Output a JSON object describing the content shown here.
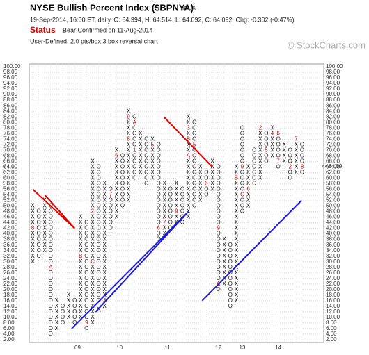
{
  "chart_data": {
    "type": "point-figure",
    "title": "NYSE Bullish Percent Index ($BPNYA)",
    "symbol": "INDX",
    "info": "19-Sep-2014, 16:00 ET, daily, O: 64.394, H: 64.514, L: 64.092, C: 64.092, Chg: -0.302 (-0.47%)",
    "status_label": "Status",
    "status_text": "Bear Confirmed on 11-Aug-2014",
    "settings": "User-Defined, 2.0 pts/box 3 box reversal chart",
    "watermark": "© StockCharts.com",
    "box_size": 2,
    "ylim": [
      2,
      100
    ],
    "grid": true,
    "yticks": [
      {
        "value": 100,
        "label": "100.00"
      },
      {
        "value": 98,
        "label": "98.00"
      },
      {
        "value": 96,
        "label": "96.00"
      },
      {
        "value": 94,
        "label": "94.00"
      },
      {
        "value": 92,
        "label": "92.00"
      },
      {
        "value": 90,
        "label": "90.00"
      },
      {
        "value": 88,
        "label": "88.00"
      },
      {
        "value": 86,
        "label": "86.00"
      },
      {
        "value": 84,
        "label": "84.00"
      },
      {
        "value": 82,
        "label": "82.00"
      },
      {
        "value": 80,
        "label": "80.00"
      },
      {
        "value": 78,
        "label": "78.00"
      },
      {
        "value": 76,
        "label": "76.00"
      },
      {
        "value": 74,
        "label": "74.00"
      },
      {
        "value": 72,
        "label": "72.00"
      },
      {
        "value": 70,
        "label": "70.00"
      },
      {
        "value": 68,
        "label": "68.00"
      },
      {
        "value": 66,
        "label": "66.00"
      },
      {
        "value": 64,
        "label": "64.00"
      },
      {
        "value": 62,
        "label": "62.00"
      },
      {
        "value": 60,
        "label": "60.00"
      },
      {
        "value": 58,
        "label": "58.00"
      },
      {
        "value": 56,
        "label": "56.00"
      },
      {
        "value": 54,
        "label": "54.00"
      },
      {
        "value": 52,
        "label": "52.00"
      },
      {
        "value": 50,
        "label": "50.00"
      },
      {
        "value": 48,
        "label": "48.00"
      },
      {
        "value": 46,
        "label": "46.00"
      },
      {
        "value": 44,
        "label": "44.00"
      },
      {
        "value": 42,
        "label": "42.00"
      },
      {
        "value": 40,
        "label": "40.00"
      },
      {
        "value": 38,
        "label": "38.00"
      },
      {
        "value": 36,
        "label": "36.00"
      },
      {
        "value": 34,
        "label": "34.00"
      },
      {
        "value": 32,
        "label": "32.00"
      },
      {
        "value": 30,
        "label": "30.00"
      },
      {
        "value": 28,
        "label": "28.00"
      },
      {
        "value": 26,
        "label": "26.00"
      },
      {
        "value": 24,
        "label": "24.00"
      },
      {
        "value": 22,
        "label": "22.00"
      },
      {
        "value": 20,
        "label": "20.00"
      },
      {
        "value": 18,
        "label": "18.00"
      },
      {
        "value": 16,
        "label": "16.00"
      },
      {
        "value": 14,
        "label": "14.00"
      },
      {
        "value": 12,
        "label": "12.00"
      },
      {
        "value": 10,
        "label": "10.00"
      },
      {
        "value": 8,
        "label": "8.00"
      },
      {
        "value": 6,
        "label": "6.00"
      },
      {
        "value": 4,
        "label": "4.00"
      },
      {
        "value": 2,
        "label": "2.00"
      }
    ],
    "last_left": {
      "value": 64,
      "label": "64.00"
    },
    "last_right": {
      "value": 64.09,
      "label": "<<64.09"
    },
    "x_labels": [
      {
        "value": 7.5,
        "label": "09"
      },
      {
        "value": 14.5,
        "label": "10"
      },
      {
        "value": 22.5,
        "label": "11"
      },
      {
        "value": 31,
        "label": "12"
      },
      {
        "value": 35,
        "label": "13"
      },
      {
        "value": 41,
        "label": "14"
      }
    ],
    "columns": [
      {
        "kind": "X",
        "low": 30,
        "high": 50,
        "marks": [
          {
            "value": 42,
            "label": "8"
          }
        ]
      },
      {
        "kind": "O",
        "low": 32,
        "high": 48,
        "marks": []
      },
      {
        "kind": "X",
        "low": 34,
        "high": 52,
        "marks": []
      },
      {
        "kind": "O",
        "low": 4,
        "high": 50,
        "marks": [
          {
            "value": 28,
            "label": "A"
          }
        ]
      },
      {
        "kind": "X",
        "low": 6,
        "high": 16,
        "marks": []
      },
      {
        "kind": "O",
        "low": 8,
        "high": 14,
        "marks": []
      },
      {
        "kind": "X",
        "low": 10,
        "high": 18,
        "marks": []
      },
      {
        "kind": "O",
        "low": 8,
        "high": 16,
        "marks": []
      },
      {
        "kind": "X",
        "low": 10,
        "high": 46,
        "marks": [
          {
            "value": 32,
            "label": "B"
          }
        ]
      },
      {
        "kind": "O",
        "low": 6,
        "high": 44,
        "marks": [
          {
            "value": 8,
            "label": "9"
          }
        ]
      },
      {
        "kind": "X",
        "low": 8,
        "high": 66,
        "marks": [
          {
            "value": 48,
            "label": "2"
          },
          {
            "value": 30,
            "label": "C"
          }
        ]
      },
      {
        "kind": "O",
        "low": 12,
        "high": 64,
        "marks": []
      },
      {
        "kind": "X",
        "low": 14,
        "high": 58,
        "marks": [
          {
            "value": 16,
            "label": "3"
          }
        ]
      },
      {
        "kind": "O",
        "low": 42,
        "high": 56,
        "marks": [
          {
            "value": 54,
            "label": "7"
          }
        ]
      },
      {
        "kind": "X",
        "low": 46,
        "high": 70,
        "marks": [
          {
            "value": 68,
            "label": "6"
          }
        ]
      },
      {
        "kind": "O",
        "low": 50,
        "high": 68,
        "marks": []
      },
      {
        "kind": "X",
        "low": 52,
        "high": 84,
        "marks": [
          {
            "value": 82,
            "label": "9"
          },
          {
            "value": 74,
            "label": "8"
          }
        ]
      },
      {
        "kind": "O",
        "low": 60,
        "high": 82,
        "marks": [
          {
            "value": 80,
            "label": "A"
          },
          {
            "value": 70,
            "label": "1"
          }
        ]
      },
      {
        "kind": "X",
        "low": 62,
        "high": 76,
        "marks": []
      },
      {
        "kind": "O",
        "low": 58,
        "high": 74,
        "marks": []
      },
      {
        "kind": "X",
        "low": 60,
        "high": 74,
        "marks": [
          {
            "value": 72,
            "label": "5"
          }
        ]
      },
      {
        "kind": "O",
        "low": 38,
        "high": 72,
        "marks": [
          {
            "value": 42,
            "label": "6"
          }
        ]
      },
      {
        "kind": "X",
        "low": 40,
        "high": 58,
        "marks": [
          {
            "value": 44,
            "label": "7"
          }
        ]
      },
      {
        "kind": "O",
        "low": 42,
        "high": 56,
        "marks": []
      },
      {
        "kind": "X",
        "low": 44,
        "high": 58,
        "marks": [
          {
            "value": 48,
            "label": "9"
          }
        ]
      },
      {
        "kind": "O",
        "low": 44,
        "high": 56,
        "marks": []
      },
      {
        "kind": "X",
        "low": 46,
        "high": 82,
        "marks": [
          {
            "value": 78,
            "label": "3"
          },
          {
            "value": 68,
            "label": "A"
          },
          {
            "value": 74,
            "label": "B"
          }
        ]
      },
      {
        "kind": "O",
        "low": 50,
        "high": 80,
        "marks": [
          {
            "value": 72,
            "label": "5"
          }
        ]
      },
      {
        "kind": "X",
        "low": 52,
        "high": 64,
        "marks": []
      },
      {
        "kind": "O",
        "low": 54,
        "high": 62,
        "marks": [
          {
            "value": 58,
            "label": "6"
          }
        ]
      },
      {
        "kind": "X",
        "low": 56,
        "high": 66,
        "marks": []
      },
      {
        "kind": "O",
        "low": 20,
        "high": 64,
        "marks": [
          {
            "value": 42,
            "label": "9"
          },
          {
            "value": 22,
            "label": "A"
          }
        ]
      },
      {
        "kind": "X",
        "low": 22,
        "high": 38,
        "marks": []
      },
      {
        "kind": "O",
        "low": 14,
        "high": 36,
        "marks": []
      },
      {
        "kind": "X",
        "low": 16,
        "high": 64,
        "marks": [
          {
            "value": 60,
            "label": "B"
          }
        ]
      },
      {
        "kind": "O",
        "low": 48,
        "high": 78,
        "marks": [
          {
            "value": 54,
            "label": "C"
          },
          {
            "value": 64,
            "label": "9"
          }
        ]
      },
      {
        "kind": "X",
        "low": 50,
        "high": 64,
        "marks": [
          {
            "value": 56,
            "label": "6"
          }
        ]
      },
      {
        "kind": "O",
        "low": 58,
        "high": 70,
        "marks": []
      },
      {
        "kind": "X",
        "low": 60,
        "high": 78,
        "marks": [
          {
            "value": 78,
            "label": "2"
          }
        ]
      },
      {
        "kind": "O",
        "low": 66,
        "high": 76,
        "marks": [
          {
            "value": 70,
            "label": "5"
          }
        ]
      },
      {
        "kind": "X",
        "low": 68,
        "high": 78,
        "marks": [
          {
            "value": 76,
            "label": "4"
          }
        ]
      },
      {
        "kind": "O",
        "low": 64,
        "high": 76,
        "marks": [
          {
            "value": 76,
            "label": "6"
          },
          {
            "value": 66,
            "label": "7"
          }
        ]
      },
      {
        "kind": "X",
        "low": 66,
        "high": 72,
        "marks": []
      },
      {
        "kind": "O",
        "low": 60,
        "high": 70,
        "marks": [
          {
            "value": 72,
            "label": "1"
          },
          {
            "value": 64,
            "label": "2"
          }
        ]
      },
      {
        "kind": "X",
        "low": 62,
        "high": 74,
        "marks": [
          {
            "value": 74,
            "label": "7"
          }
        ]
      },
      {
        "kind": "O",
        "low": 62,
        "high": 72,
        "marks": [
          {
            "value": 64,
            "label": "8"
          }
        ]
      }
    ],
    "trendlines": [
      {
        "color": "#e00000",
        "x": [
          0,
          7
        ],
        "y": [
          56,
          42
        ]
      },
      {
        "color": "#e00000",
        "x": [
          2,
          7
        ],
        "y": [
          54,
          42
        ]
      },
      {
        "color": "#e00000",
        "x": [
          21.9,
          30
        ],
        "y": [
          82,
          64
        ]
      },
      {
        "color": "#1a1adc",
        "x": [
          6.5,
          26
        ],
        "y": [
          6,
          48
        ]
      },
      {
        "color": "#1a1adc",
        "x": [
          10.5,
          26
        ],
        "y": [
          12,
          48
        ]
      },
      {
        "color": "#1a1adc",
        "x": [
          28.3,
          44.9
        ],
        "y": [
          16,
          52
        ]
      }
    ]
  }
}
